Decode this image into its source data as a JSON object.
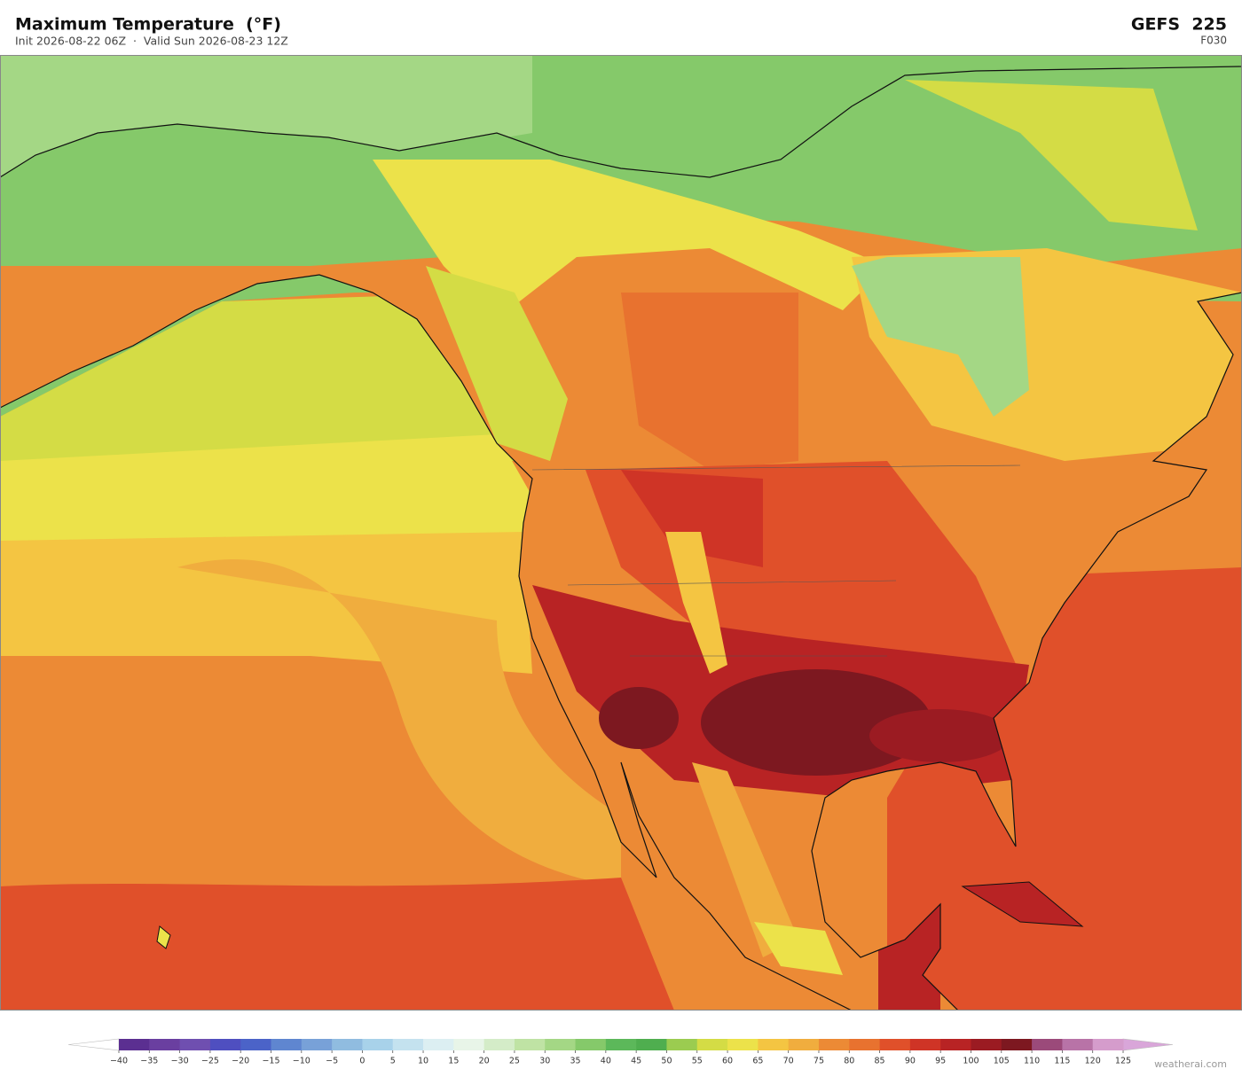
{
  "header": {
    "title": "Maximum Temperature  (°F)",
    "subtitle": "Init 2026-08-22 06Z  ·  Valid Sun 2026-08-23 12Z",
    "model": "GEFS  225",
    "forecast_hour": "F030"
  },
  "map": {
    "colorbar": {
      "ticks": [
        {
          "value": -40,
          "label": "−40"
        },
        {
          "value": -35,
          "label": "−35"
        },
        {
          "value": -30,
          "label": "−30"
        },
        {
          "value": -25,
          "label": "−25"
        },
        {
          "value": -20,
          "label": "−20"
        },
        {
          "value": -15,
          "label": "−15"
        },
        {
          "value": -10,
          "label": "−10"
        },
        {
          "value": -5,
          "label": "−5"
        },
        0,
        5,
        10,
        15,
        20,
        25,
        30,
        35,
        40,
        45,
        50,
        55,
        60,
        65,
        70,
        75,
        80,
        85,
        90,
        95,
        100,
        105,
        110,
        115,
        120,
        125
      ],
      "colors": [
        "#5b2f91",
        "#6a3fa0",
        "#6f4fb0",
        "#4f4fc0",
        "#4b63c8",
        "#5f86d0",
        "#78a1d8",
        "#90bce0",
        "#a8d2ea",
        "#c4e2ef",
        "#dceff2",
        "#e8f5e8",
        "#d4ecc8",
        "#bfe3a4",
        "#a4d785",
        "#85c96a",
        "#5cb85a",
        "#4fae4f",
        "#9bcc50",
        "#d4dc45",
        "#ece24a",
        "#f4c542",
        "#f0ad3e",
        "#ec8a35",
        "#e8722f",
        "#e0502a",
        "#cf3426",
        "#b82324",
        "#9b1b22",
        "#7d1820",
        "#9b4a7a",
        "#b873a7",
        "#d59ccc"
      ],
      "under_color": "#ffffff",
      "over_color": "#d9a6d9"
    }
  },
  "footer": {
    "credit": "weatherai.com"
  }
}
